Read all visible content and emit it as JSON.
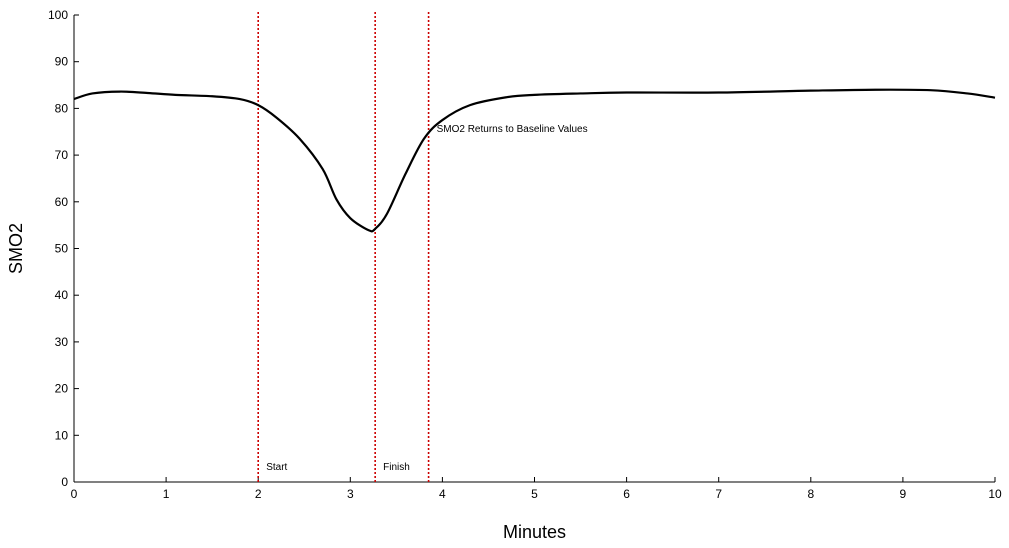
{
  "chart_data": {
    "type": "line",
    "title": "",
    "xlabel": "Minutes",
    "ylabel": "SMO2",
    "xlim": [
      0,
      10
    ],
    "ylim": [
      0,
      100
    ],
    "x_ticks": [
      0,
      1,
      2,
      3,
      4,
      5,
      6,
      7,
      8,
      9,
      10
    ],
    "y_ticks": [
      0,
      10,
      20,
      30,
      40,
      50,
      60,
      70,
      80,
      90,
      100
    ],
    "grid": false,
    "legend": "none",
    "series": [
      {
        "color": "#000000",
        "x": [
          0,
          0.2,
          0.5,
          0.8,
          1.1,
          1.5,
          1.8,
          2.0,
          2.2,
          2.45,
          2.7,
          2.85,
          3.0,
          3.2,
          3.27,
          3.4,
          3.6,
          3.8,
          4.0,
          4.3,
          4.7,
          5.0,
          5.5,
          6.0,
          7.0,
          8.0,
          8.7,
          9.3,
          9.7,
          10.0
        ],
        "y": [
          82,
          83.2,
          83.6,
          83.3,
          82.9,
          82.6,
          82.0,
          80.7,
          78.0,
          73.5,
          67.0,
          60.5,
          56.5,
          53.9,
          54.2,
          57.5,
          66.0,
          73.5,
          77.5,
          80.7,
          82.4,
          82.9,
          83.2,
          83.4,
          83.4,
          83.8,
          84.0,
          83.9,
          83.2,
          82.3
        ]
      }
    ],
    "vlines": [
      {
        "x": 2.0,
        "color": "#cc0000",
        "label": "Start"
      },
      {
        "x": 3.27,
        "color": "#cc0000",
        "label": "Finish"
      },
      {
        "x": 3.85,
        "color": "#cc0000",
        "label": "SMO2 Returns to Baseline Values"
      }
    ]
  }
}
